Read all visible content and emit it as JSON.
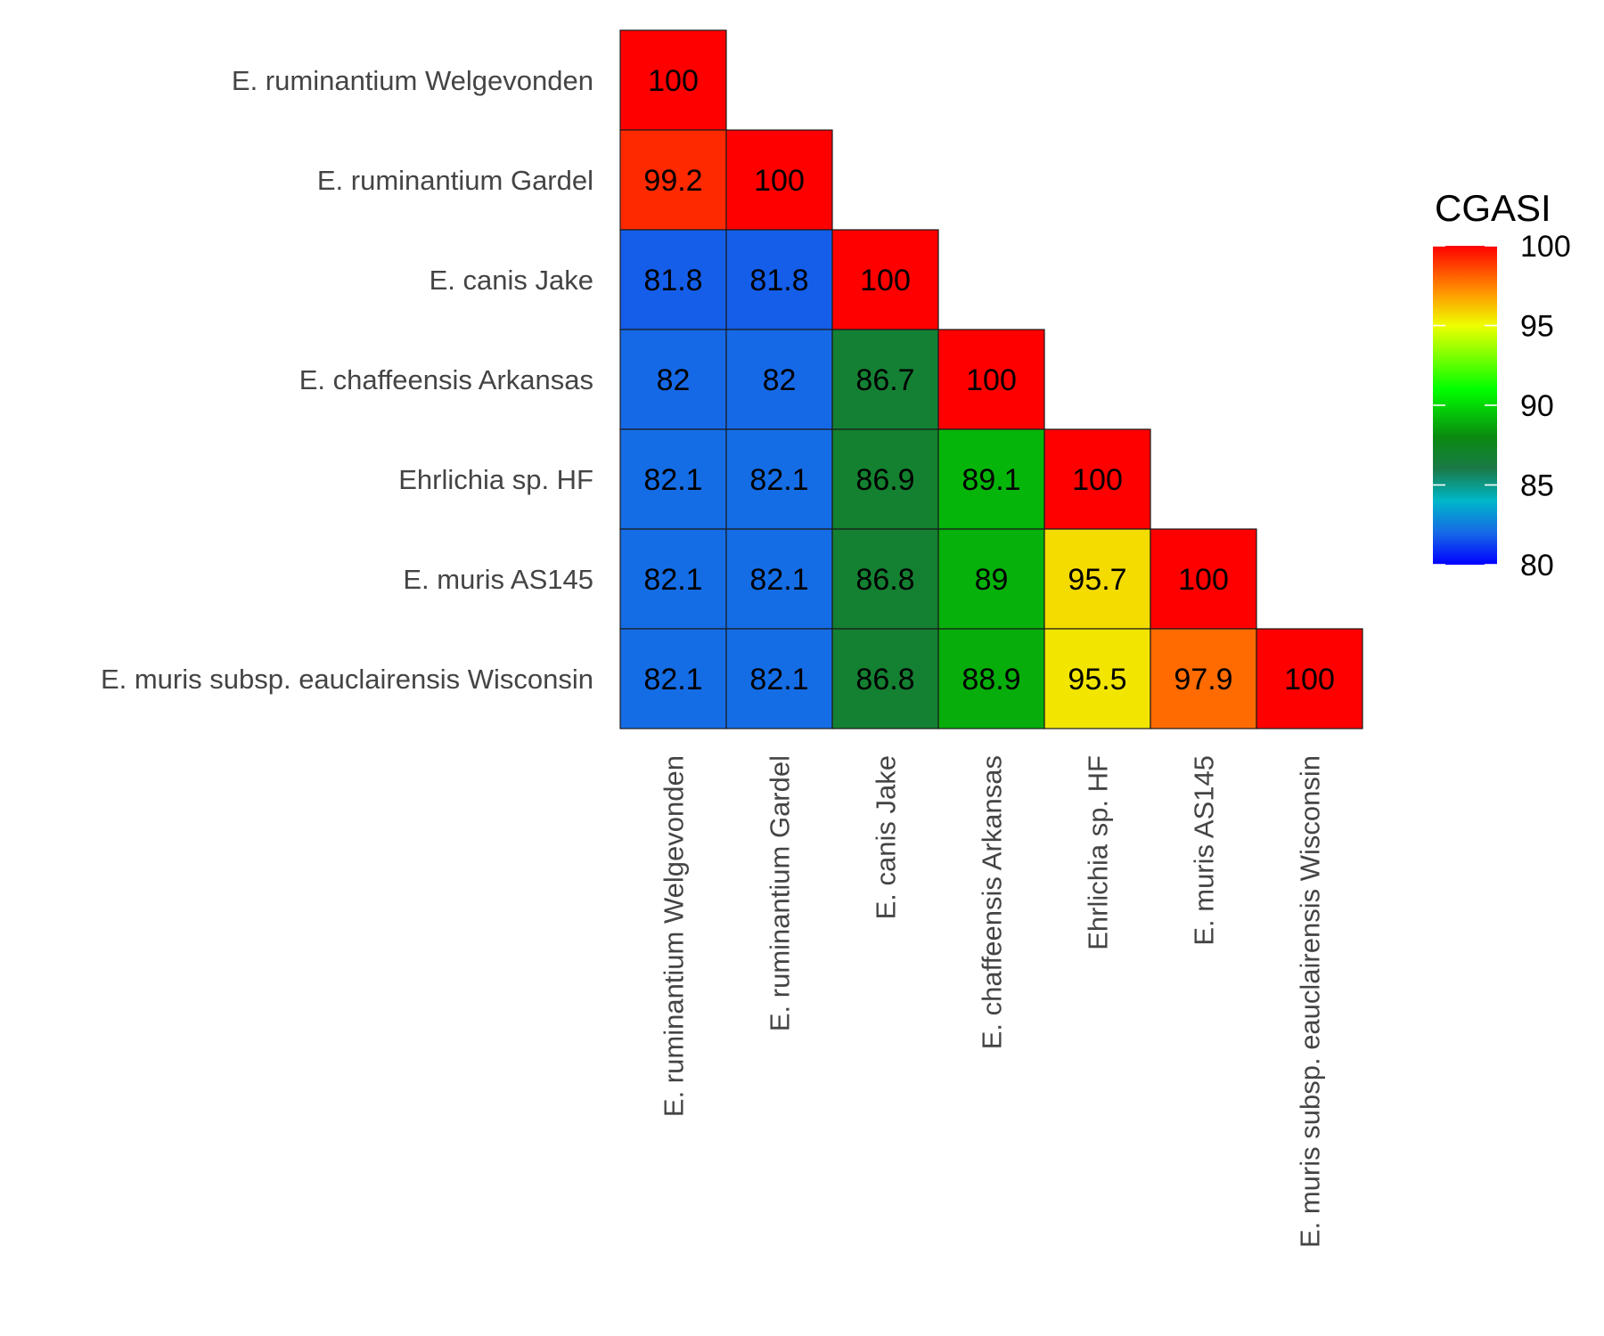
{
  "chart_data": {
    "type": "heatmap",
    "title": "",
    "xlabel": "",
    "ylabel": "",
    "categories": [
      "E. ruminantium Welgevonden",
      "E. ruminantium Gardel",
      "E. canis Jake",
      "E. chaffeensis Arkansas",
      "Ehrlichia sp. HF",
      "E. muris AS145",
      "E. muris subsp. eauclairensis Wisconsin"
    ],
    "matrix": [
      [
        100
      ],
      [
        99.2,
        100
      ],
      [
        81.8,
        81.8,
        100
      ],
      [
        82,
        82,
        86.7,
        100
      ],
      [
        82.1,
        82.1,
        86.9,
        89.1,
        100
      ],
      [
        82.1,
        82.1,
        86.8,
        89,
        95.7,
        100
      ],
      [
        82.1,
        82.1,
        86.8,
        88.9,
        95.5,
        97.9,
        100
      ]
    ],
    "colorscale": {
      "title": "CGASI",
      "range": [
        80,
        100
      ],
      "ticks": [
        80,
        85,
        90,
        95,
        100
      ],
      "stops": [
        {
          "value": 80,
          "color": "#0000ff"
        },
        {
          "value": 82,
          "color": "#1669e6"
        },
        {
          "value": 84,
          "color": "#00b7c9"
        },
        {
          "value": 86,
          "color": "#1a7a48"
        },
        {
          "value": 88,
          "color": "#0a8a10"
        },
        {
          "value": 91,
          "color": "#00ff00"
        },
        {
          "value": 95,
          "color": "#eeff00"
        },
        {
          "value": 97,
          "color": "#ff9900"
        },
        {
          "value": 100,
          "color": "#ff0000"
        }
      ]
    },
    "legend_position": "right",
    "grid": false
  }
}
